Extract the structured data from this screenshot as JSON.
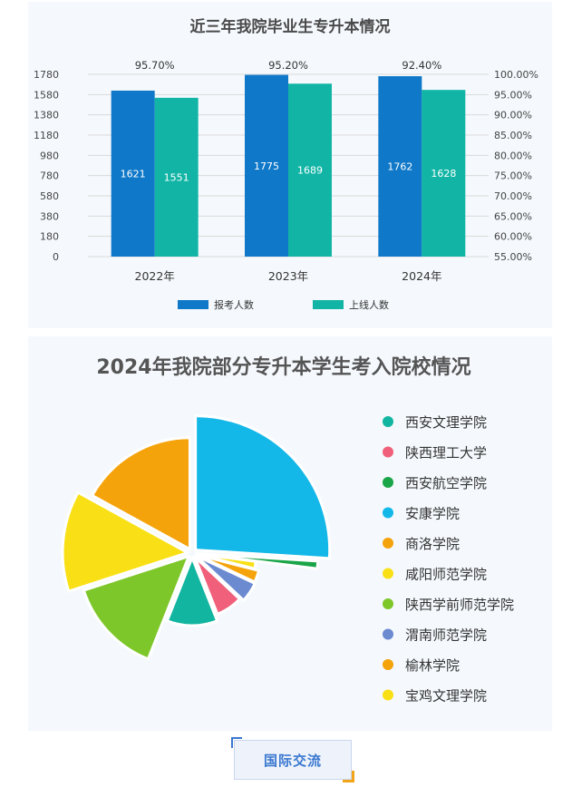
{
  "chart_data": [
    {
      "type": "bar",
      "title": "近三年我院毕业生专升本情况",
      "categories": [
        "2022年",
        "2023年",
        "2024年"
      ],
      "series": [
        {
          "name": "报考人数",
          "values": [
            1621,
            1775,
            1762
          ],
          "color": "#0f78c8"
        },
        {
          "name": "上线人数",
          "values": [
            1551,
            1689,
            1628
          ],
          "color": "#12b5a5"
        }
      ],
      "rates": [
        "95.70%",
        "95.20%",
        "92.40%"
      ],
      "y_left_ticks": [
        "0",
        "180",
        "380",
        "580",
        "780",
        "980",
        "1180",
        "1380",
        "1580",
        "1780"
      ],
      "y_right_ticks": [
        "55.00%",
        "60.00%",
        "65.00%",
        "70.00%",
        "75.00%",
        "80.00%",
        "85.00%",
        "90.00%",
        "95.00%",
        "100.00%"
      ],
      "ylim": [
        0,
        1780
      ],
      "ylim_right": [
        55,
        100
      ],
      "grid": true,
      "legend_position": "bottom"
    },
    {
      "type": "pie",
      "title": "2024年我院部分专升本学生考入院校情况",
      "slices": [
        {
          "label": "西安文理学院",
          "value": 12,
          "color": "#12b5a0"
        },
        {
          "label": "陕西理工大学",
          "value": 7,
          "color": "#f0607a"
        },
        {
          "label": "西安航空学院",
          "value": 1,
          "color": "#1aa548"
        },
        {
          "label": "安康学院",
          "value": 26,
          "color": "#13b8e8"
        },
        {
          "label": "商洛学院",
          "value": 17,
          "color": "#f5a30a"
        },
        {
          "label": "咸阳师范学院",
          "value": 13,
          "color": "#f9e016"
        },
        {
          "label": "陕西学前师范学院",
          "value": 14,
          "color": "#7ec72a"
        },
        {
          "label": "渭南师范学院",
          "value": 5,
          "color": "#6b8ad0"
        },
        {
          "label": "榆林学院",
          "value": 3,
          "color": "#f5a30a"
        },
        {
          "label": "宝鸡文理学院",
          "value": 2,
          "color": "#f9e016"
        }
      ],
      "legend_position": "right"
    }
  ],
  "footer_tab": {
    "label": "国际交流"
  }
}
